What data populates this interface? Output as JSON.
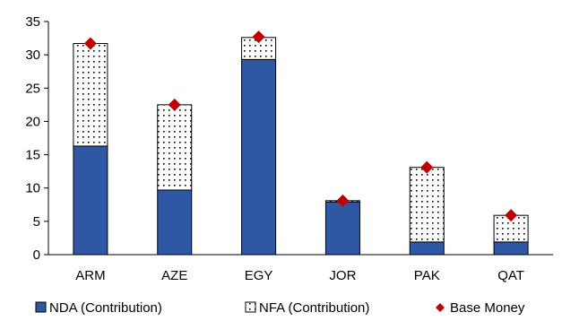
{
  "chart_data": {
    "type": "bar",
    "stacked": true,
    "categories": [
      "ARM",
      "AZE",
      "EGY",
      "JOR",
      "PAK",
      "QAT"
    ],
    "series": [
      {
        "name": "NDA (Contribution)",
        "kind": "bar",
        "values": [
          16.3,
          9.7,
          29.3,
          7.9,
          1.9,
          1.9
        ]
      },
      {
        "name": "NFA (Contribution)",
        "kind": "bar",
        "values": [
          15.4,
          12.8,
          3.3,
          0.2,
          11.2,
          4.0
        ]
      },
      {
        "name": "Base Money",
        "kind": "marker",
        "values": [
          31.7,
          22.5,
          32.7,
          8.1,
          13.1,
          5.9
        ]
      }
    ],
    "ylim": [
      0,
      35
    ],
    "yticks": [
      "0",
      "5",
      "10",
      "15",
      "20",
      "25",
      "30",
      "35"
    ],
    "legend_position": "bottom",
    "grid": false,
    "title": "",
    "xlabel": "",
    "ylabel": ""
  },
  "colors": {
    "nda": "#2E58A3",
    "nfa_dots": "#000000",
    "marker": "#C00000"
  }
}
